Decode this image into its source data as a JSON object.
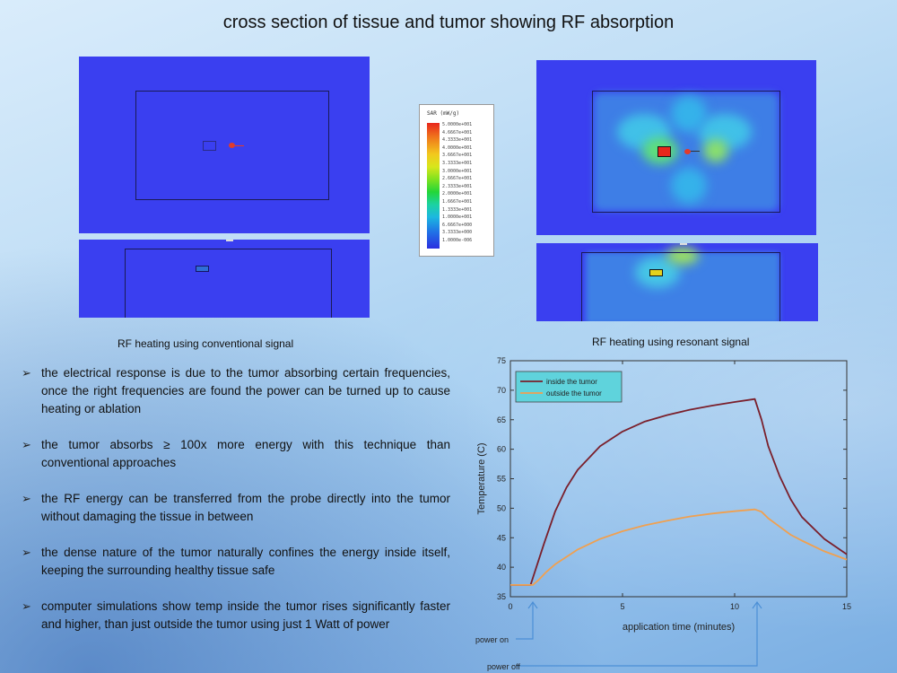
{
  "slide": {
    "title": "cross section of tissue and tumor showing RF absorption",
    "caption_left": "RF heating using conventional signal",
    "caption_right": "RF heating using resonant signal"
  },
  "legend": {
    "header": "SAR (mW/g)",
    "ticks": [
      "5.0000e+001",
      "4.6667e+001",
      "4.3333e+001",
      "4.0000e+001",
      "3.6667e+001",
      "3.3333e+001",
      "3.0000e+001",
      "2.6667e+001",
      "2.3333e+001",
      "2.0000e+001",
      "1.6667e+001",
      "1.3333e+001",
      "1.0000e+001",
      "6.6667e+000",
      "3.3333e+000",
      "1.0000e-006"
    ]
  },
  "bullets": [
    {
      "text": "the electrical response is due to the tumor absorbing certain frequencies, once the right frequencies are found the power can be turned up to cause heating or ablation"
    },
    {
      "text": "the tumor absorbs ≥ 100x more energy with this technique than conventional approaches"
    },
    {
      "text": "the RF energy can be transferred from the probe directly into the tumor without damaging the tissue in between"
    },
    {
      "text": "the dense nature of the tumor naturally confines the energy inside itself, keeping the surrounding healthy tissue safe"
    },
    {
      "text": "computer simulations show temp inside the tumor rises significantly faster and higher, than just outside the tumor using just 1 Watt of power"
    }
  ],
  "annotations": {
    "power_on": "power on",
    "power_off": "power off"
  },
  "chart_data": {
    "type": "line",
    "title": "",
    "xlabel": "application time (minutes)",
    "ylabel": "Temperature (C)",
    "xlim": [
      0,
      15
    ],
    "ylim": [
      35,
      75
    ],
    "xticks": [
      0,
      5,
      10,
      15
    ],
    "yticks": [
      35,
      40,
      45,
      50,
      55,
      60,
      65,
      70,
      75
    ],
    "grid": false,
    "legend_position": "top-left",
    "series": [
      {
        "name": "inside the tumor",
        "color": "#7a1f2b",
        "x": [
          0,
          0.9,
          1.2,
          1.5,
          2,
          2.5,
          3,
          4,
          5,
          6,
          7,
          8,
          9,
          10,
          10.9,
          11.2,
          11.5,
          12,
          12.5,
          13,
          14,
          15
        ],
        "y": [
          37,
          37,
          40.5,
          44,
          49.5,
          53.5,
          56.5,
          60.5,
          63,
          64.7,
          65.8,
          66.7,
          67.4,
          68,
          68.5,
          65,
          60.5,
          55.5,
          51.5,
          48.5,
          44.8,
          42.2
        ]
      },
      {
        "name": "outside the tumor",
        "color": "#f0a050",
        "x": [
          0,
          1.0,
          1.3,
          1.6,
          2,
          3,
          4,
          5,
          6,
          7,
          8,
          9,
          10,
          10.9,
          11.2,
          11.5,
          12,
          12.5,
          13,
          14,
          15
        ],
        "y": [
          37,
          37,
          38,
          39.2,
          40.5,
          43,
          44.8,
          46.1,
          47.1,
          47.9,
          48.6,
          49.1,
          49.5,
          49.8,
          49.4,
          48.3,
          46.9,
          45.5,
          44.5,
          42.7,
          41.3
        ]
      }
    ]
  }
}
